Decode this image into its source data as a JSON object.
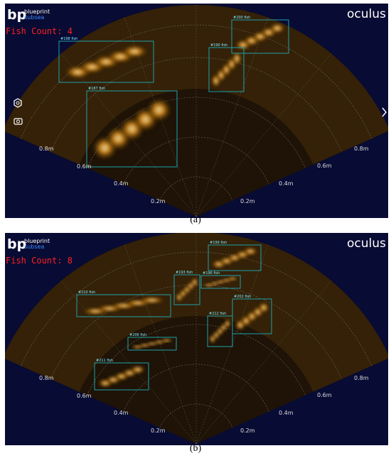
{
  "panels": [
    {
      "label": "(a)",
      "logo": {
        "mark": "bp",
        "name": "blueprint",
        "sub": "subsea"
      },
      "brand": "oculus",
      "fish_count": "Fish Count: 4",
      "range_left": [
        "0.8m",
        "0.6m",
        "0.4m",
        "0.2m"
      ],
      "range_right": [
        "0.2m",
        "0.4m",
        "0.6m",
        "0.8m"
      ],
      "detections": [
        "#198 fish",
        "#200 fish",
        "#190 fish",
        "#187 fish"
      ]
    },
    {
      "label": "(b)",
      "logo": {
        "mark": "bp",
        "name": "blueprint",
        "sub": "subsea"
      },
      "brand": "oculus",
      "fish_count": "Fish Count: 8",
      "range_left": [
        "0.8m",
        "0.6m",
        "0.4m",
        "0.2m"
      ],
      "range_right": [
        "0.2m",
        "0.4m",
        "0.6m",
        "0.8m"
      ],
      "detections": [
        "#199 fish",
        "#193 fish",
        "#196 fish",
        "#210 fish",
        "#202 fish",
        "#212 fish",
        "#206 fish",
        "#211 fish"
      ]
    }
  ]
}
